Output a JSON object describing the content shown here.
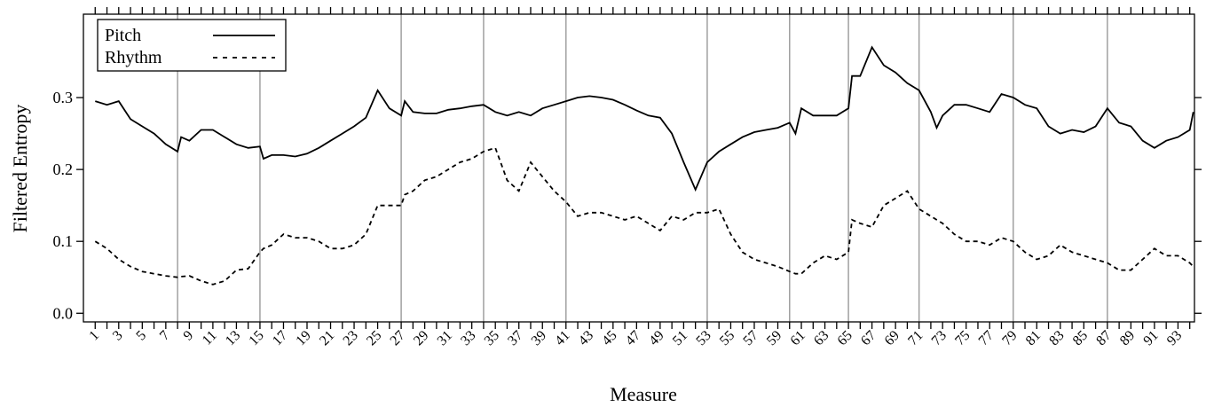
{
  "chart_data": {
    "type": "line",
    "xlabel": "Measure",
    "ylabel": "Filtered Entropy",
    "x": [
      1,
      2,
      3,
      4,
      5,
      6,
      7,
      8,
      8.3,
      9,
      10,
      11,
      12,
      13,
      14,
      15,
      15.3,
      16,
      17,
      18,
      19,
      20,
      21,
      22,
      23,
      24,
      25,
      26,
      27,
      27.3,
      28,
      29,
      30,
      31,
      32,
      33,
      34,
      35,
      36,
      37,
      38,
      39,
      40,
      41,
      42,
      43,
      44,
      45,
      46,
      47,
      48,
      49,
      50,
      51,
      52,
      53,
      54,
      55,
      56,
      57,
      58,
      59,
      60,
      60.5,
      61,
      62,
      63,
      64,
      65,
      65.3,
      66,
      67,
      68,
      69,
      70,
      71,
      72,
      72.5,
      73,
      74,
      75,
      76,
      77,
      78,
      79,
      80,
      81,
      82,
      83,
      84,
      85,
      86,
      87,
      88,
      89,
      90,
      91,
      92,
      93,
      94,
      94.3
    ],
    "series": [
      {
        "name": "Pitch",
        "color": "#000000",
        "style": "solid",
        "values": [
          0.295,
          0.29,
          0.295,
          0.27,
          0.26,
          0.25,
          0.235,
          0.225,
          0.245,
          0.24,
          0.255,
          0.255,
          0.245,
          0.235,
          0.23,
          0.232,
          0.215,
          0.22,
          0.22,
          0.218,
          0.222,
          0.23,
          0.24,
          0.25,
          0.26,
          0.272,
          0.31,
          0.285,
          0.275,
          0.295,
          0.28,
          0.278,
          0.278,
          0.283,
          0.285,
          0.288,
          0.29,
          0.28,
          0.275,
          0.28,
          0.275,
          0.285,
          0.29,
          0.295,
          0.3,
          0.302,
          0.3,
          0.297,
          0.29,
          0.282,
          0.275,
          0.272,
          0.25,
          0.21,
          0.172,
          0.21,
          0.225,
          0.235,
          0.245,
          0.252,
          0.255,
          0.258,
          0.265,
          0.25,
          0.285,
          0.275,
          0.275,
          0.275,
          0.285,
          0.33,
          0.33,
          0.37,
          0.345,
          0.335,
          0.32,
          0.31,
          0.28,
          0.258,
          0.275,
          0.29,
          0.29,
          0.285,
          0.28,
          0.305,
          0.3,
          0.29,
          0.285,
          0.26,
          0.25,
          0.255,
          0.252,
          0.26,
          0.285,
          0.265,
          0.26,
          0.24,
          0.23,
          0.24,
          0.245,
          0.255,
          0.28
        ]
      },
      {
        "name": "Rhythm",
        "color": "#000000",
        "style": "dashed",
        "values": [
          0.1,
          0.09,
          0.075,
          0.065,
          0.058,
          0.055,
          0.052,
          0.05,
          0.051,
          0.052,
          0.045,
          0.04,
          0.045,
          0.06,
          0.062,
          0.085,
          0.09,
          0.095,
          0.11,
          0.105,
          0.105,
          0.1,
          0.09,
          0.09,
          0.095,
          0.11,
          0.15,
          0.15,
          0.15,
          0.165,
          0.17,
          0.185,
          0.19,
          0.2,
          0.21,
          0.215,
          0.225,
          0.23,
          0.185,
          0.17,
          0.21,
          0.19,
          0.17,
          0.155,
          0.135,
          0.14,
          0.14,
          0.135,
          0.13,
          0.135,
          0.125,
          0.115,
          0.135,
          0.13,
          0.14,
          0.14,
          0.145,
          0.11,
          0.085,
          0.075,
          0.07,
          0.065,
          0.058,
          0.055,
          0.055,
          0.07,
          0.08,
          0.075,
          0.085,
          0.13,
          0.125,
          0.12,
          0.15,
          0.16,
          0.17,
          0.145,
          0.135,
          0.13,
          0.125,
          0.11,
          0.1,
          0.1,
          0.095,
          0.105,
          0.1,
          0.085,
          0.075,
          0.08,
          0.095,
          0.085,
          0.08,
          0.075,
          0.07,
          0.06,
          0.06,
          0.075,
          0.09,
          0.08,
          0.08,
          0.07,
          0.065
        ]
      }
    ],
    "xlim": [
      0,
      94.4
    ],
    "ylim": [
      -0.012,
      0.416
    ],
    "xticks": [
      1,
      3,
      5,
      7,
      9,
      11,
      13,
      15,
      17,
      19,
      21,
      23,
      25,
      27,
      29,
      31,
      33,
      35,
      37,
      39,
      41,
      43,
      45,
      47,
      49,
      51,
      53,
      55,
      57,
      59,
      61,
      63,
      65,
      67,
      69,
      71,
      73,
      75,
      77,
      79,
      81,
      83,
      85,
      87,
      89,
      91,
      93
    ],
    "xminorticks": [
      2,
      4,
      6,
      8,
      10,
      12,
      14,
      16,
      18,
      20,
      22,
      24,
      26,
      28,
      30,
      32,
      34,
      36,
      38,
      40,
      42,
      44,
      46,
      48,
      50,
      52,
      54,
      56,
      58,
      60,
      62,
      64,
      66,
      68,
      70,
      72,
      74,
      76,
      78,
      80,
      82,
      84,
      86,
      88,
      90,
      92,
      94
    ],
    "yticks": [
      {
        "value": 0,
        "label": "0.0"
      },
      0.1,
      0.2,
      0.3
    ],
    "vlines": [
      8,
      15,
      27,
      34,
      41,
      53,
      60,
      65,
      71,
      79,
      87
    ],
    "legend": "top-left"
  }
}
